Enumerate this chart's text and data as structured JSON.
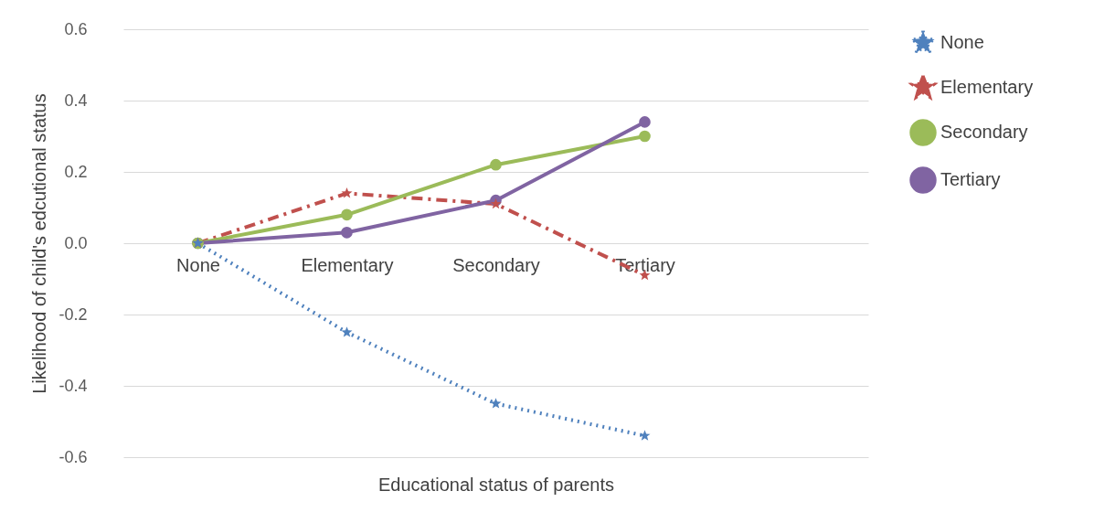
{
  "chart_data": {
    "type": "line",
    "xlabel": "Educational status of parents",
    "ylabel": "Likelihood of child's edcutional status",
    "categories": [
      "None",
      "Elementary",
      "Secondary",
      "Tertiary",
      null
    ],
    "series": [
      {
        "name": "None",
        "color": "#4f81bd",
        "line_style": "dotted",
        "marker": "star",
        "values": [
          0,
          -0.25,
          -0.45,
          -0.54,
          null
        ]
      },
      {
        "name": "Elementary",
        "color": "#c0504d",
        "line_style": "dashed",
        "marker": "star",
        "values": [
          0,
          0.14,
          0.11,
          -0.09,
          null
        ]
      },
      {
        "name": "Secondary",
        "color": "#9bbb59",
        "line_style": "solid",
        "marker": "circle",
        "values": [
          0,
          0.08,
          0.22,
          0.3,
          null
        ]
      },
      {
        "name": "Tertiary",
        "color": "#8064a2",
        "line_style": "solid",
        "marker": "circle",
        "values": [
          0,
          0.03,
          0.12,
          0.34,
          null
        ]
      }
    ],
    "ylim": [
      -0.6,
      0.6
    ],
    "yticks": [
      {
        "value": -0.6,
        "label": "-0.6"
      },
      {
        "value": -0.4,
        "label": "-0.4"
      },
      {
        "value": -0.2,
        "label": "-0.2"
      },
      {
        "value": 0,
        "label": "0.0"
      },
      {
        "value": 0.2,
        "label": "0.2"
      },
      {
        "value": 0.4,
        "label": "0.4"
      },
      {
        "value": 0.6,
        "label": "0.6"
      }
    ],
    "grid": "y",
    "legend": "right"
  }
}
